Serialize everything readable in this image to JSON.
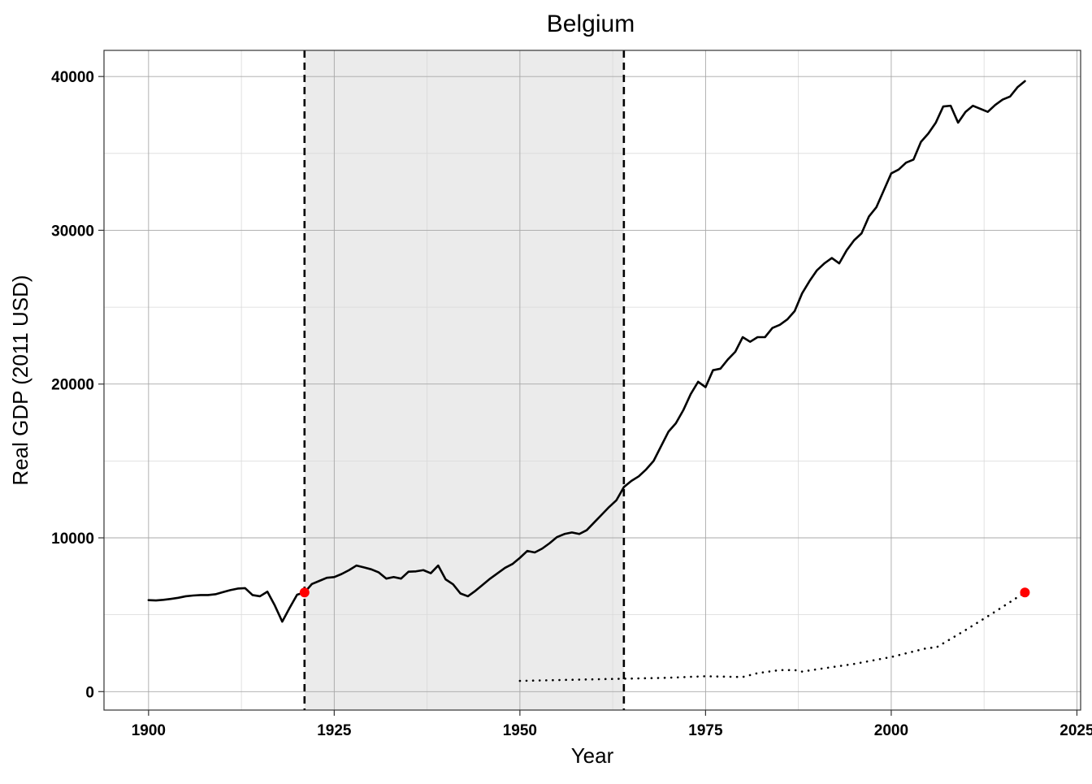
{
  "chart_data": {
    "type": "line",
    "title": "Belgium",
    "xlabel": "Year",
    "ylabel": "Real GDP (2011 USD)",
    "xlim": [
      1894,
      2025.5
    ],
    "ylim": [
      -1200,
      41700
    ],
    "x_ticks": [
      1900,
      1925,
      1950,
      1975,
      2000,
      2025
    ],
    "x_tick_labels": [
      "1900",
      "1925",
      "1950",
      "1975",
      "2000",
      "2025"
    ],
    "y_ticks": [
      0,
      10000,
      20000,
      30000,
      40000
    ],
    "y_tick_labels": [
      "0",
      "10000",
      "20000",
      "30000",
      "40000"
    ],
    "grid": true,
    "shaded_region": {
      "x_start": 1921,
      "x_end": 1964,
      "color": "#ebebeb"
    },
    "vertical_lines": [
      {
        "x": 1921,
        "style": "dashed"
      },
      {
        "x": 1964,
        "style": "dashed"
      }
    ],
    "highlight_points": [
      {
        "x": 1921,
        "y": 6450,
        "color": "#ff0000"
      },
      {
        "x": 2018,
        "y": 6450,
        "color": "#ff0000"
      }
    ],
    "series": [
      {
        "style": "solid",
        "color": "#000000",
        "x": [
          1900,
          1901,
          1902,
          1903,
          1904,
          1905,
          1906,
          1907,
          1908,
          1909,
          1910,
          1911,
          1912,
          1913,
          1914,
          1915,
          1916,
          1917,
          1918,
          1919,
          1920,
          1921,
          1922,
          1923,
          1924,
          1925,
          1926,
          1927,
          1928,
          1929,
          1930,
          1931,
          1932,
          1933,
          1934,
          1935,
          1936,
          1937,
          1938,
          1939,
          1940,
          1941,
          1942,
          1943,
          1944,
          1945,
          1946,
          1947,
          1948,
          1949,
          1950,
          1951,
          1952,
          1953,
          1954,
          1955,
          1956,
          1957,
          1958,
          1959,
          1960,
          1961,
          1962,
          1963,
          1964,
          1965,
          1966,
          1967,
          1968,
          1969,
          1970,
          1971,
          1972,
          1973,
          1974,
          1975,
          1976,
          1977,
          1978,
          1979,
          1980,
          1981,
          1982,
          1983,
          1984,
          1985,
          1986,
          1987,
          1988,
          1989,
          1990,
          1991,
          1992,
          1993,
          1994,
          1995,
          1996,
          1997,
          1998,
          1999,
          2000,
          2001,
          2002,
          2003,
          2004,
          2005,
          2006,
          2007,
          2008,
          2009,
          2010,
          2011,
          2012,
          2013,
          2014,
          2015,
          2016,
          2017,
          2018
        ],
        "y": [
          5950,
          5930,
          5970,
          6030,
          6100,
          6200,
          6250,
          6280,
          6280,
          6330,
          6470,
          6600,
          6700,
          6730,
          6280,
          6200,
          6500,
          5600,
          4550,
          5450,
          6300,
          6450,
          7000,
          7200,
          7400,
          7450,
          7650,
          7900,
          8200,
          8080,
          7950,
          7750,
          7350,
          7450,
          7350,
          7800,
          7820,
          7900,
          7700,
          8200,
          7300,
          6980,
          6380,
          6200,
          6550,
          6950,
          7350,
          7700,
          8050,
          8300,
          8700,
          9150,
          9050,
          9300,
          9650,
          10050,
          10250,
          10350,
          10250,
          10500,
          11000,
          11500,
          12000,
          12450,
          13300,
          13700,
          14000,
          14450,
          15000,
          15950,
          16900,
          17450,
          18300,
          19350,
          20150,
          19800,
          20900,
          21000,
          21600,
          22100,
          23050,
          22750,
          23050,
          23050,
          23650,
          23850,
          24200,
          24750,
          25900,
          26700,
          27400,
          27850,
          28200,
          27850,
          28700,
          29350,
          29800,
          30900,
          31500,
          32600,
          33700,
          33950,
          34400,
          34600,
          35750,
          36300,
          37000,
          38050,
          38100,
          37000,
          37700,
          38100,
          37900,
          37700,
          38150,
          38500,
          38700,
          39300,
          39700
        ]
      },
      {
        "style": "dotted",
        "color": "#000000",
        "x": [
          1950,
          1955,
          1960,
          1965,
          1970,
          1975,
          1980,
          1982,
          1985,
          1987,
          1988,
          1990,
          1995,
          2000,
          2005,
          2006,
          2010,
          2014,
          2018
        ],
        "y": [
          700,
          750,
          800,
          850,
          900,
          1000,
          950,
          1200,
          1400,
          1400,
          1300,
          1450,
          1800,
          2250,
          2850,
          2850,
          4000,
          5200,
          6450
        ]
      }
    ]
  }
}
